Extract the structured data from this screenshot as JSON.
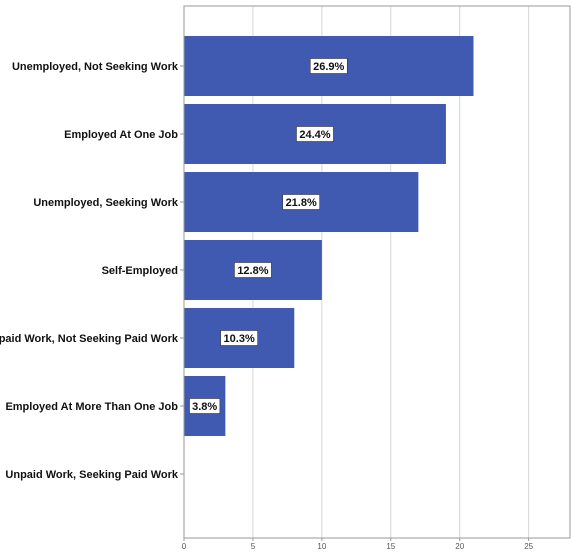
{
  "chart_data": {
    "type": "bar",
    "orientation": "horizontal",
    "categories": [
      "Unemployed, Not Seeking Work",
      "Employed At One Job",
      "Unemployed, Seeking Work",
      "Self-Employed",
      "Unpaid Work, Not Seeking Paid Work",
      "Employed At More Than One Job",
      "Unpaid Work, Seeking Paid Work"
    ],
    "values": [
      21,
      19,
      17,
      10,
      8,
      3,
      0
    ],
    "data_labels": [
      "26.9%",
      "24.4%",
      "21.8%",
      "12.8%",
      "10.3%",
      "3.8%",
      ""
    ],
    "xlim": [
      0,
      28
    ],
    "xticks": [
      0,
      5,
      10,
      15,
      20,
      25
    ],
    "grid": true,
    "title": "",
    "xlabel": "",
    "ylabel": "",
    "colors": {
      "bar": "#3f5ab0",
      "grid": "#d6d6d6",
      "axis": "#9a9a9a"
    }
  }
}
